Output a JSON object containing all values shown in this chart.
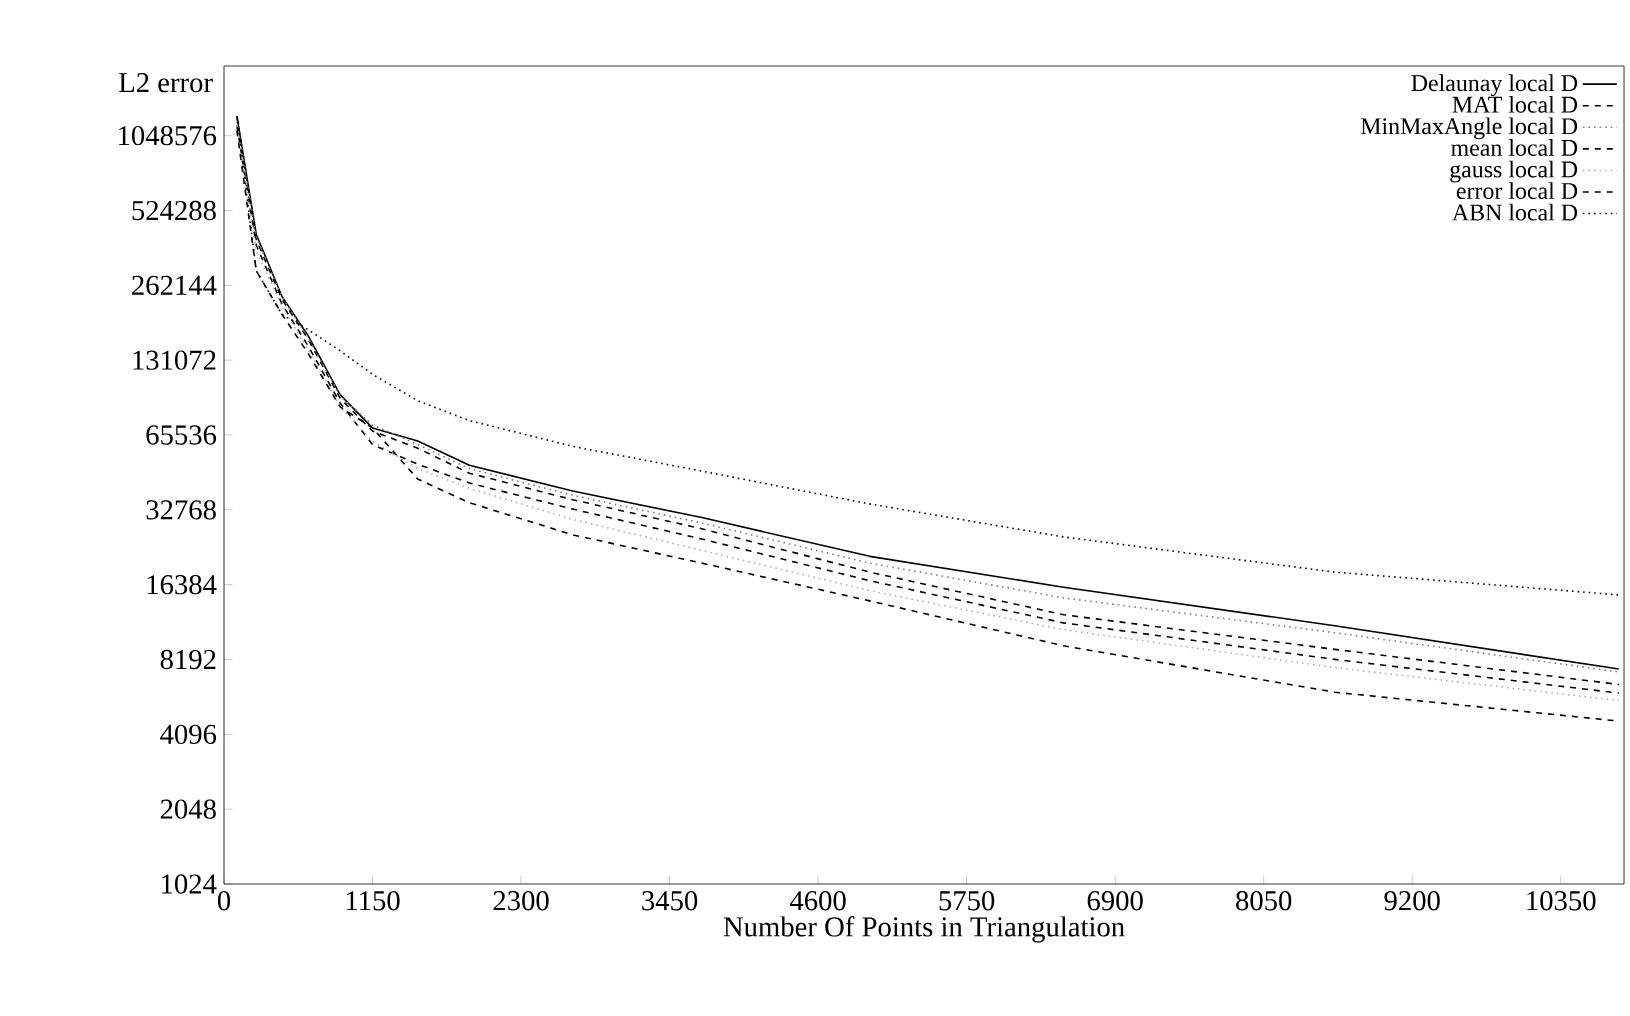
{
  "chart_data": {
    "type": "line",
    "xlabel": "Number Of Points in Triangulation",
    "ylabel": "L2 error",
    "log": "y",
    "legend": "top right",
    "grid": false,
    "marker": "none",
    "x": [
      100,
      250,
      450,
      650,
      900,
      1150,
      1500,
      1900,
      2700,
      3700,
      5000,
      6500,
      8600,
      10800
    ],
    "xlim": [
      0,
      10840
    ],
    "ylim": [
      1024,
      2000000
    ],
    "xticks": [
      0,
      1150,
      2300,
      3450,
      4600,
      5750,
      6900,
      8050,
      9200,
      10350
    ],
    "yticks": [
      1024,
      2048,
      4096,
      8192,
      16384,
      32768,
      65536,
      131072,
      262144,
      524288,
      1048576
    ],
    "series": [
      {
        "name": "Delaunay local D",
        "color": "#000000",
        "line_style": "solid",
        "values": [
          1255000,
          420000,
          236000,
          165000,
          95000,
          70000,
          62000,
          49500,
          39000,
          30500,
          21300,
          16000,
          11200,
          7500
        ]
      },
      {
        "name": "MAT local D",
        "color": "#000000",
        "line_style": "dashed",
        "values": [
          1255000,
          400000,
          230000,
          160000,
          92000,
          68000,
          58000,
          46000,
          36000,
          27500,
          18400,
          12400,
          9000,
          6500
        ]
      },
      {
        "name": "MinMaxAngle local D",
        "color": "#808080",
        "line_style": "dotted",
        "values": [
          1200000,
          410000,
          235000,
          162000,
          94000,
          72000,
          60000,
          48000,
          37500,
          29000,
          20000,
          14500,
          10500,
          7300
        ]
      },
      {
        "name": "mean local D",
        "color": "#000000",
        "line_style": "dashed",
        "values": [
          1150000,
          380000,
          220000,
          150000,
          88000,
          60000,
          50000,
          42000,
          33000,
          25000,
          17000,
          11500,
          8200,
          6000
        ]
      },
      {
        "name": "gauss local D",
        "color": "#b0b0b0",
        "line_style": "dotted",
        "values": [
          1150000,
          360000,
          215000,
          145000,
          85000,
          62000,
          48000,
          40000,
          30000,
          22500,
          15500,
          10800,
          7600,
          5600
        ]
      },
      {
        "name": "error local D",
        "color": "#000000",
        "line_style": "dashed",
        "values": [
          1100000,
          300000,
          200000,
          140000,
          85000,
          70000,
          43600,
          35000,
          26000,
          20000,
          14100,
          9300,
          6050,
          4630
        ]
      },
      {
        "name": "ABN local D",
        "color": "#000000",
        "line_style": "dotted",
        "values": [
          1255000,
          300000,
          200000,
          174000,
          143000,
          115000,
          90000,
          74900,
          59000,
          46900,
          34600,
          25500,
          18400,
          14900
        ]
      }
    ]
  }
}
